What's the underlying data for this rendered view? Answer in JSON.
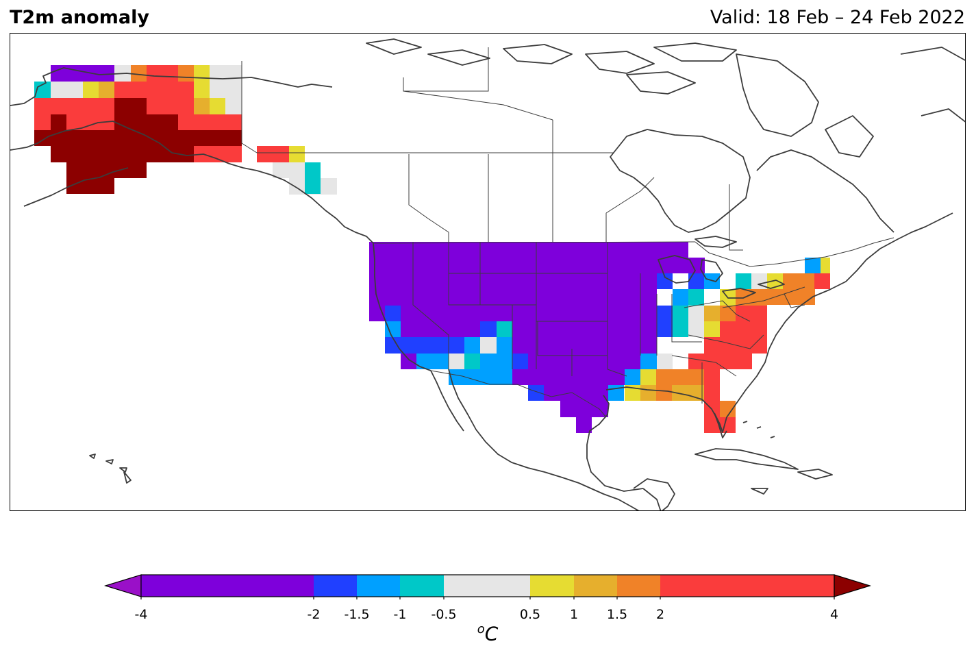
{
  "header": {
    "title": "T2m anomaly",
    "valid": "Valid: 18 Feb – 24 Feb 2022"
  },
  "colorbar": {
    "unit_base": "C",
    "unit_sup": "o",
    "ticks": [
      "-4",
      "-2",
      "-1.5",
      "-1",
      "-0.5",
      "0.5",
      "1",
      "1.5",
      "2",
      "4"
    ],
    "colors": {
      "under": "#9a10c8",
      "m4_m2": "#7e00db",
      "m2_m15": "#2040ff",
      "m15_m1": "#00a0ff",
      "m1_m05": "#00c8c8",
      "m05_05": "#e6e6e6",
      "p05_1": "#e6dc32",
      "p1_15": "#e6af2d",
      "p15_2": "#f08228",
      "p2_4": "#fa3c3c",
      "over": "#8c0000"
    }
  },
  "map": {
    "coastline_color": "#3c3c3c"
  }
}
